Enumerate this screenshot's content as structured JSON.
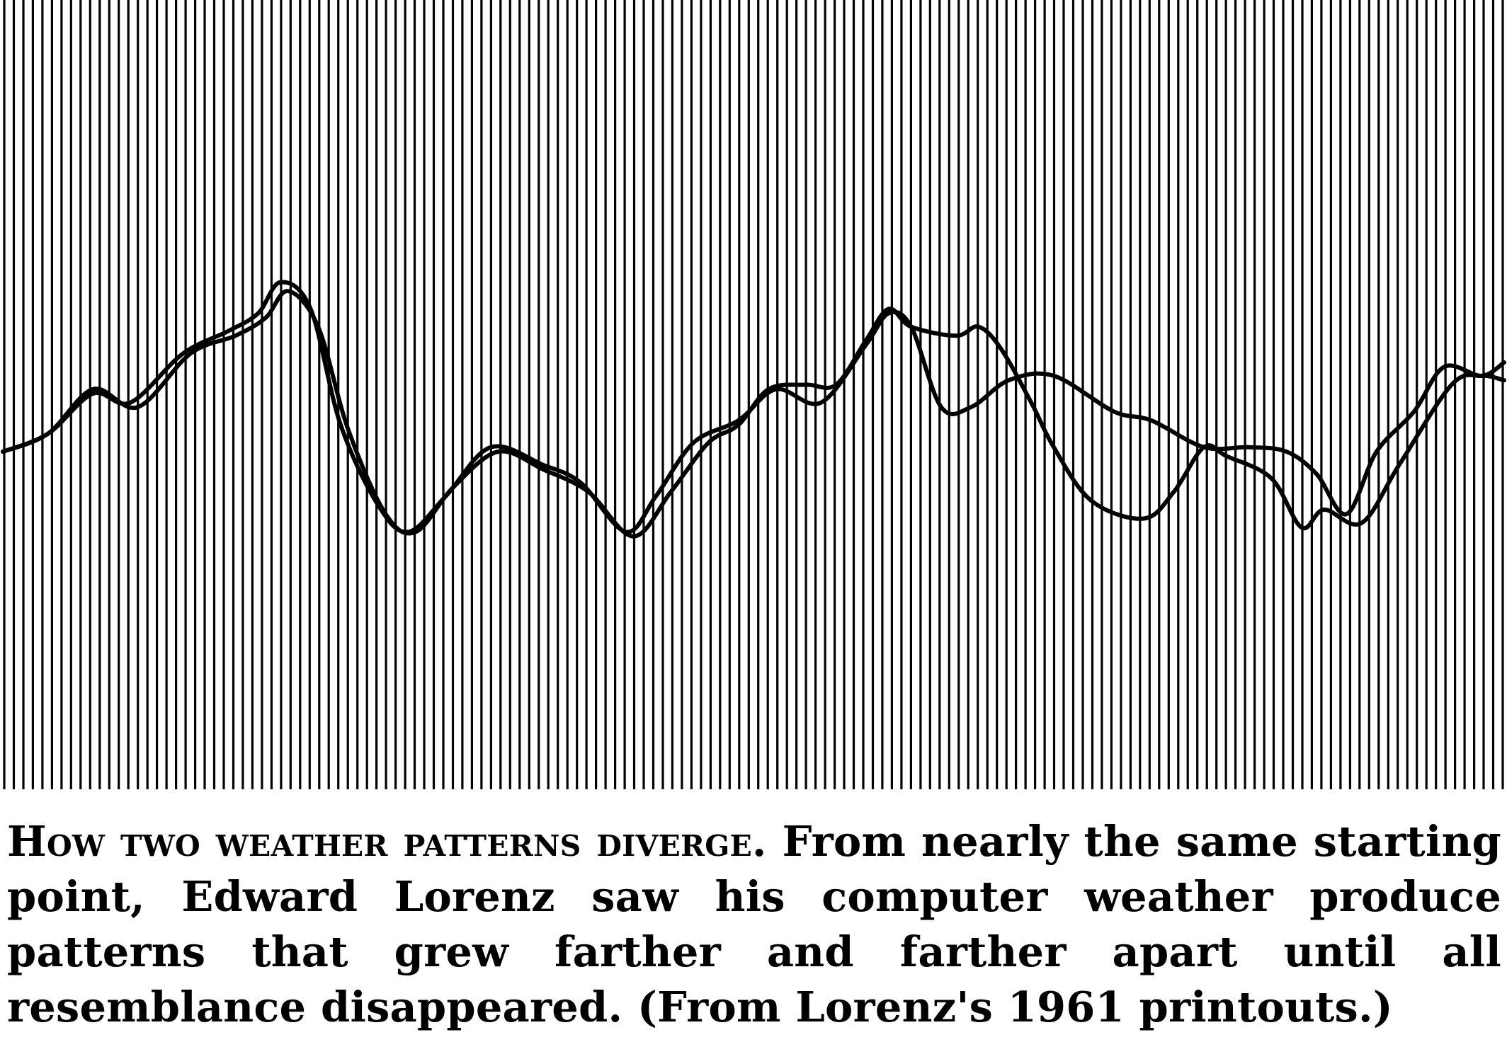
{
  "chart_data": {
    "type": "line",
    "title": "",
    "xlabel": "",
    "ylabel": "",
    "grid": "vertical lines only",
    "legend": "none",
    "colors": {
      "line": "#000000",
      "grid": "#000000",
      "background": "#ffffff"
    },
    "x_range": [
      0,
      1
    ],
    "y_range": [
      0,
      1
    ],
    "series": [
      {
        "values": [
          [
            0.0,
            0.4
          ],
          [
            0.03,
            0.44
          ],
          [
            0.06,
            0.53
          ],
          [
            0.085,
            0.51
          ],
          [
            0.12,
            0.62
          ],
          [
            0.15,
            0.67
          ],
          [
            0.17,
            0.71
          ],
          [
            0.185,
            0.78
          ],
          [
            0.205,
            0.72
          ],
          [
            0.225,
            0.46
          ],
          [
            0.25,
            0.28
          ],
          [
            0.27,
            0.22
          ],
          [
            0.295,
            0.3
          ],
          [
            0.325,
            0.41
          ],
          [
            0.36,
            0.37
          ],
          [
            0.385,
            0.33
          ],
          [
            0.415,
            0.22
          ],
          [
            0.435,
            0.3
          ],
          [
            0.46,
            0.42
          ],
          [
            0.49,
            0.47
          ],
          [
            0.515,
            0.54
          ],
          [
            0.545,
            0.51
          ],
          [
            0.575,
            0.64
          ],
          [
            0.59,
            0.71
          ],
          [
            0.605,
            0.68
          ],
          [
            0.625,
            0.5
          ],
          [
            0.645,
            0.5
          ],
          [
            0.67,
            0.56
          ],
          [
            0.7,
            0.57
          ],
          [
            0.74,
            0.49
          ],
          [
            0.765,
            0.47
          ],
          [
            0.8,
            0.41
          ],
          [
            0.83,
            0.41
          ],
          [
            0.855,
            0.4
          ],
          [
            0.875,
            0.35
          ],
          [
            0.895,
            0.26
          ],
          [
            0.915,
            0.4
          ],
          [
            0.94,
            0.49
          ],
          [
            0.96,
            0.59
          ],
          [
            0.985,
            0.57
          ],
          [
            1.0,
            0.6
          ]
        ]
      },
      {
        "values": [
          [
            0.0,
            0.4
          ],
          [
            0.03,
            0.44
          ],
          [
            0.06,
            0.54
          ],
          [
            0.09,
            0.5
          ],
          [
            0.125,
            0.62
          ],
          [
            0.155,
            0.66
          ],
          [
            0.175,
            0.7
          ],
          [
            0.19,
            0.76
          ],
          [
            0.21,
            0.68
          ],
          [
            0.23,
            0.45
          ],
          [
            0.255,
            0.26
          ],
          [
            0.275,
            0.22
          ],
          [
            0.3,
            0.32
          ],
          [
            0.33,
            0.4
          ],
          [
            0.36,
            0.36
          ],
          [
            0.39,
            0.31
          ],
          [
            0.42,
            0.21
          ],
          [
            0.445,
            0.31
          ],
          [
            0.47,
            0.42
          ],
          [
            0.49,
            0.46
          ],
          [
            0.51,
            0.54
          ],
          [
            0.535,
            0.55
          ],
          [
            0.555,
            0.55
          ],
          [
            0.575,
            0.65
          ],
          [
            0.59,
            0.72
          ],
          [
            0.605,
            0.68
          ],
          [
            0.635,
            0.66
          ],
          [
            0.65,
            0.68
          ],
          [
            0.665,
            0.63
          ],
          [
            0.685,
            0.51
          ],
          [
            0.7,
            0.41
          ],
          [
            0.725,
            0.29
          ],
          [
            0.76,
            0.25
          ],
          [
            0.78,
            0.31
          ],
          [
            0.8,
            0.41
          ],
          [
            0.815,
            0.39
          ],
          [
            0.845,
            0.34
          ],
          [
            0.865,
            0.23
          ],
          [
            0.88,
            0.27
          ],
          [
            0.905,
            0.24
          ],
          [
            0.93,
            0.37
          ],
          [
            0.965,
            0.55
          ],
          [
            0.985,
            0.57
          ],
          [
            1.0,
            0.56
          ]
        ]
      }
    ],
    "vertical_lines": 158
  },
  "caption": {
    "lead": "How two weather patterns diverge.",
    "body": "From nearly the same starting point, Edward Lorenz saw his computer weather produce patterns that grew farther and farther apart until all resemblance disappeared. (From Lorenz's 1961 printouts.)"
  }
}
